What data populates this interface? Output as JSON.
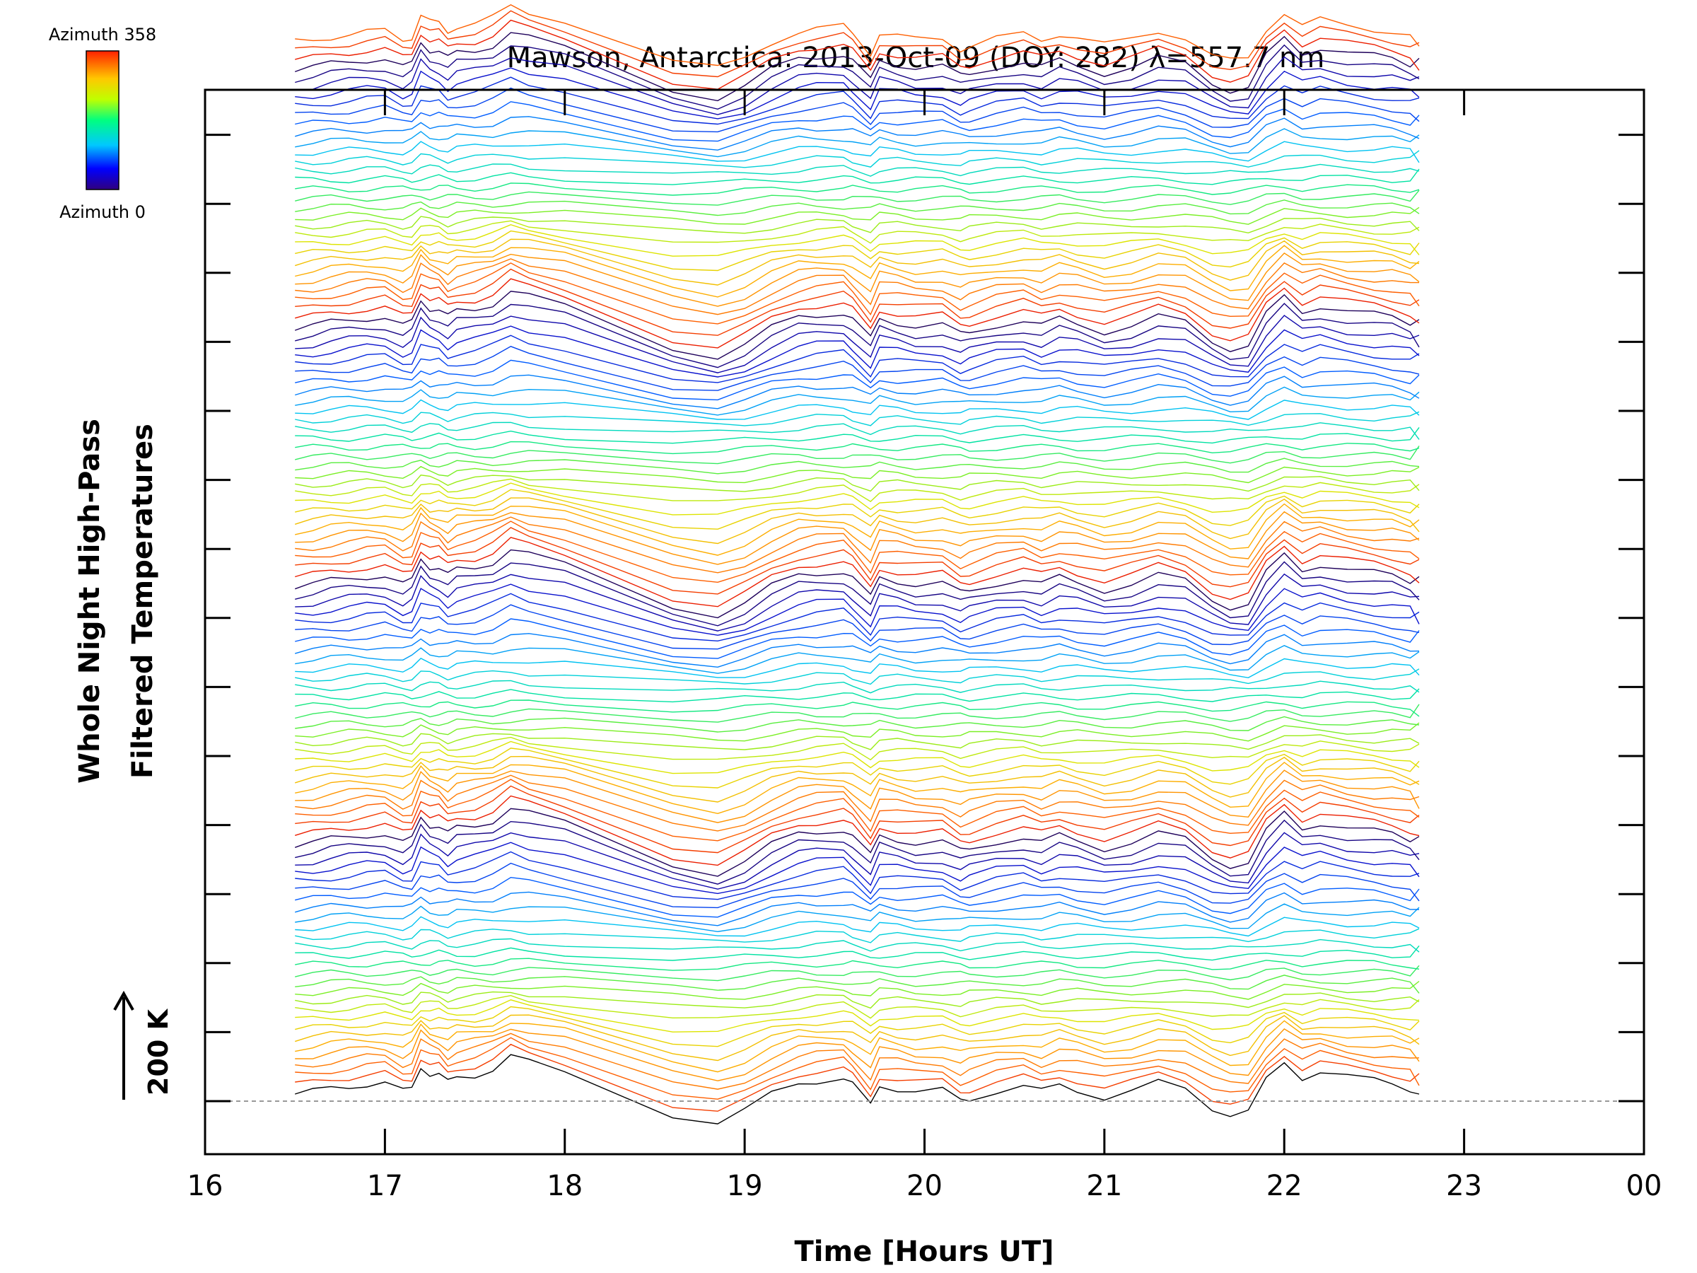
{
  "chart_data": {
    "type": "line",
    "title": "Mawson, Antarctica: 2013-Oct-09 (DOY: 282) λ=557.7 nm",
    "xlabel": "Time [Hours UT]",
    "ylabel_line1": "Whole Night High-Pass",
    "ylabel_line2": "Filtered Temperatures",
    "x_ticks": [
      "16",
      "17",
      "18",
      "19",
      "20",
      "21",
      "22",
      "23",
      "00"
    ],
    "xlim": [
      16,
      24
    ],
    "scale_bar_label": "200 K",
    "colorbar": {
      "top_label": "Azimuth 358",
      "bottom_label": "Azimuth 0"
    },
    "n_series": 115,
    "traces_per_group": 28,
    "grid": false,
    "series_note": "stacked traces, one per azimuth; color encodes azimuth (blue = 0, red = 358)",
    "baseline_dashed": true,
    "times": [
      16.5,
      16.6,
      16.7,
      16.8,
      16.9,
      17.0,
      17.1,
      17.15,
      17.2,
      17.25,
      17.3,
      17.35,
      17.4,
      17.5,
      17.6,
      17.7,
      17.8,
      18.0,
      18.6,
      18.85,
      19.0,
      19.15,
      19.3,
      19.4,
      19.55,
      19.6,
      19.7,
      19.75,
      19.85,
      19.95,
      20.1,
      20.2,
      20.25,
      20.4,
      20.55,
      20.65,
      20.75,
      20.85,
      21.0,
      21.15,
      21.3,
      21.45,
      21.6,
      21.7,
      21.8,
      21.9,
      22.0,
      22.1,
      22.2,
      22.35,
      22.5,
      22.6,
      22.7
    ],
    "common_profile": [
      0,
      2,
      5,
      7,
      9,
      10,
      2,
      5,
      25,
      18,
      17,
      10,
      15,
      17,
      22,
      33,
      28,
      20,
      -18,
      -25,
      -15,
      0,
      10,
      12,
      14,
      8,
      -10,
      8,
      5,
      2,
      3,
      -6,
      -4,
      3,
      7,
      2,
      8,
      4,
      -3,
      2,
      10,
      5,
      -12,
      -18,
      -16,
      12,
      28,
      15,
      20,
      15,
      12,
      10,
      5
    ],
    "end_value_K": [
      0,
      40,
      -35,
      30,
      -15,
      35,
      -20,
      30,
      0,
      40
    ]
  }
}
